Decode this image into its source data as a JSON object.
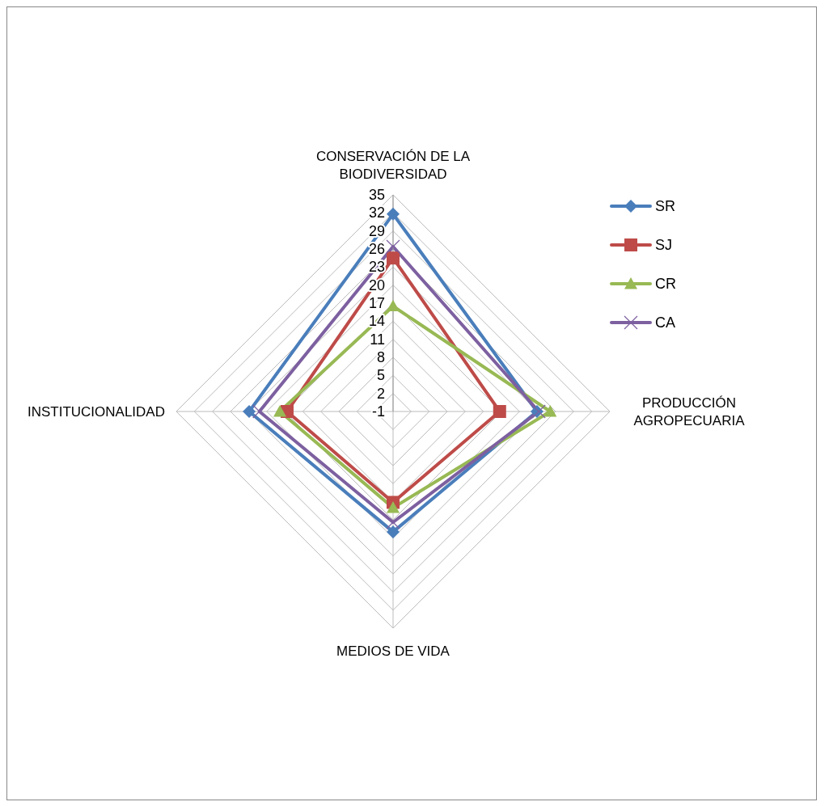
{
  "chart_data": {
    "type": "radar",
    "categories": [
      "CONSERVACIÓN DE LA BIODIVERSIDAD",
      "PRODUCCIÓN AGROPECUARIA",
      "MEDIOS DE VIDA",
      "INSTITUCIONALIDAD"
    ],
    "series": [
      {
        "name": "SR",
        "color": "#4a7ebb",
        "marker": "diamond",
        "values": [
          31.8,
          22.9,
          19,
          22.9
        ]
      },
      {
        "name": "SJ",
        "color": "#be4b48",
        "marker": "square",
        "values": [
          24.5,
          16.7,
          14.1,
          16.6
        ]
      },
      {
        "name": "CR",
        "color": "#98b954",
        "marker": "triangle",
        "values": [
          16.5,
          25.1,
          15,
          17.8
        ]
      },
      {
        "name": "CA",
        "color": "#7d60a0",
        "marker": "cross",
        "values": [
          26.4,
          23.2,
          17.4,
          21.2
        ]
      }
    ],
    "ylim": [
      -1,
      35
    ],
    "yticks": [
      -1,
      2,
      5,
      8,
      11,
      14,
      17,
      20,
      23,
      26,
      29,
      32,
      35
    ],
    "grid": true,
    "legend": "right"
  }
}
